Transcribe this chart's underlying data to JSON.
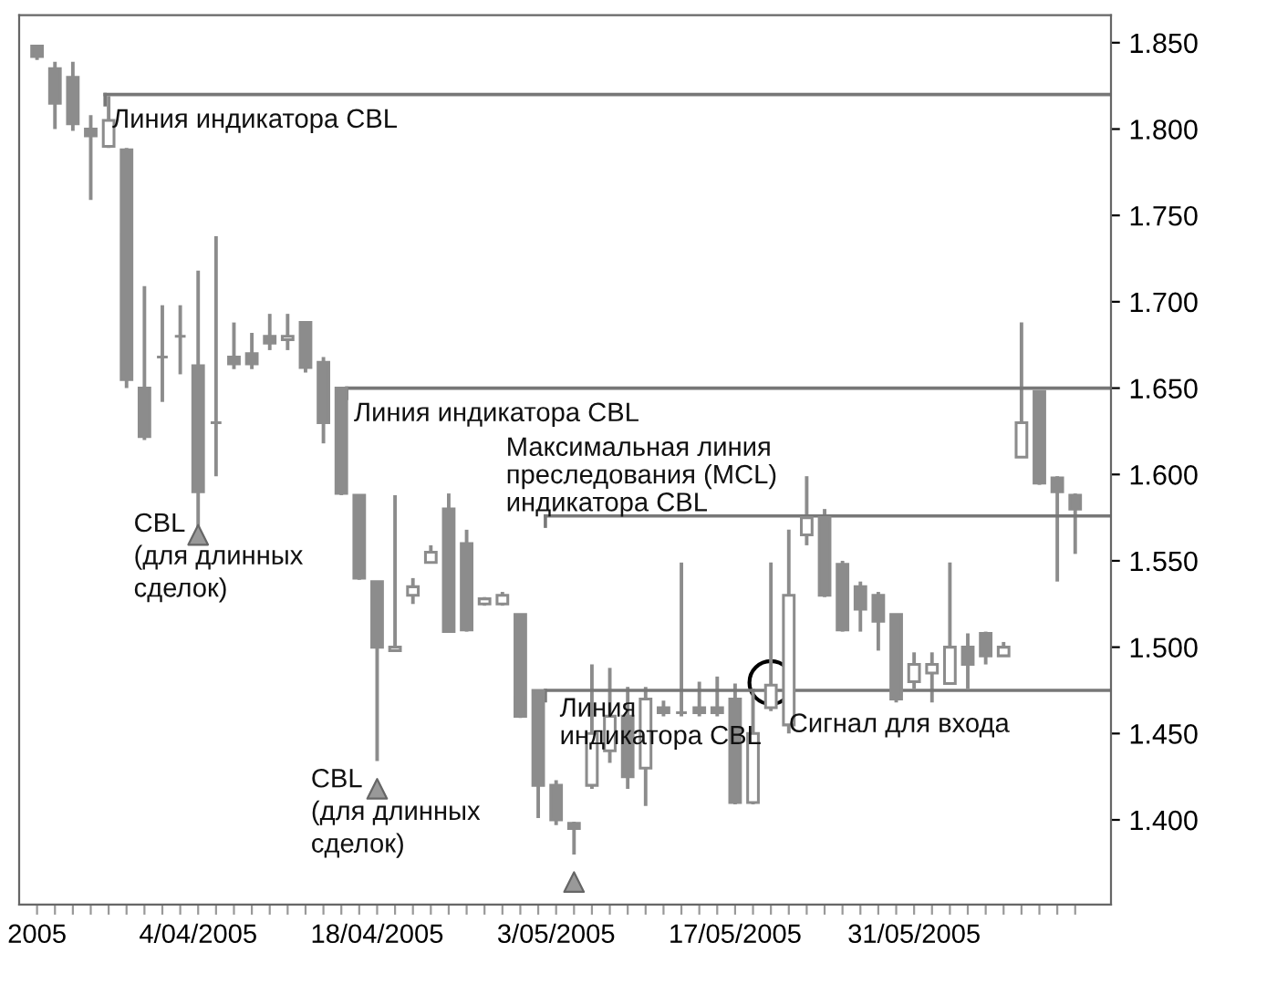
{
  "chart_data": {
    "type": "candlestick",
    "categories": [
      "2005",
      null,
      null,
      null,
      null,
      null,
      null,
      null,
      null,
      "4/04/2005",
      null,
      null,
      null,
      null,
      null,
      null,
      null,
      null,
      null,
      "18/04/2005",
      null,
      null,
      null,
      null,
      null,
      null,
      null,
      null,
      null,
      "3/05/2005",
      null,
      null,
      null,
      null,
      null,
      null,
      null,
      null,
      null,
      "17/05/2005",
      null,
      null,
      null,
      null,
      null,
      null,
      null,
      null,
      null,
      "31/05/2005",
      null,
      null,
      null,
      null,
      null,
      null,
      null,
      null,
      null
    ],
    "ohlc": [
      [
        1.848,
        1.848,
        1.84,
        1.842
      ],
      [
        1.835,
        1.839,
        1.8,
        1.815
      ],
      [
        1.83,
        1.839,
        1.799,
        1.803
      ],
      [
        1.8,
        1.808,
        1.759,
        1.796
      ],
      [
        1.79,
        1.819,
        1.789,
        1.805
      ],
      [
        1.788,
        1.789,
        1.65,
        1.655
      ],
      [
        1.65,
        1.709,
        1.62,
        1.622
      ],
      [
        1.668,
        1.698,
        1.642,
        1.668
      ],
      [
        1.68,
        1.698,
        1.658,
        1.68
      ],
      [
        1.663,
        1.718,
        1.566,
        1.59
      ],
      [
        1.63,
        1.738,
        1.599,
        1.63
      ],
      [
        1.668,
        1.688,
        1.661,
        1.664
      ],
      [
        1.67,
        1.682,
        1.661,
        1.664
      ],
      [
        1.68,
        1.693,
        1.672,
        1.676
      ],
      [
        1.678,
        1.693,
        1.672,
        1.68
      ],
      [
        1.688,
        1.688,
        1.659,
        1.662
      ],
      [
        1.665,
        1.668,
        1.618,
        1.63
      ],
      [
        1.65,
        1.65,
        1.588,
        1.589
      ],
      [
        1.588,
        1.588,
        1.539,
        1.54
      ],
      [
        1.538,
        1.538,
        1.434,
        1.5
      ],
      [
        1.498,
        1.588,
        1.498,
        1.5
      ],
      [
        1.53,
        1.54,
        1.525,
        1.535
      ],
      [
        1.549,
        1.559,
        1.549,
        1.555
      ],
      [
        1.58,
        1.589,
        1.509,
        1.509
      ],
      [
        1.56,
        1.568,
        1.509,
        1.51
      ],
      [
        1.525,
        1.529,
        1.524,
        1.528
      ],
      [
        1.525,
        1.532,
        1.524,
        1.53
      ],
      [
        1.519,
        1.519,
        1.459,
        1.46
      ],
      [
        1.475,
        1.475,
        1.401,
        1.42
      ],
      [
        1.42,
        1.423,
        1.397,
        1.4
      ],
      [
        1.398,
        1.399,
        1.38,
        1.395
      ],
      [
        1.42,
        1.49,
        1.418,
        1.45
      ],
      [
        1.44,
        1.488,
        1.433,
        1.46
      ],
      [
        1.46,
        1.477,
        1.418,
        1.425
      ],
      [
        1.43,
        1.477,
        1.408,
        1.47
      ],
      [
        1.465,
        1.469,
        1.46,
        1.462
      ],
      [
        1.462,
        1.549,
        1.46,
        1.462
      ],
      [
        1.465,
        1.48,
        1.46,
        1.462
      ],
      [
        1.465,
        1.483,
        1.46,
        1.462
      ],
      [
        1.47,
        1.479,
        1.409,
        1.41
      ],
      [
        1.41,
        1.476,
        1.409,
        1.45
      ],
      [
        1.465,
        1.549,
        1.463,
        1.478
      ],
      [
        1.455,
        1.568,
        1.45,
        1.53
      ],
      [
        1.565,
        1.599,
        1.559,
        1.575
      ],
      [
        1.575,
        1.58,
        1.529,
        1.53
      ],
      [
        1.548,
        1.55,
        1.509,
        1.51
      ],
      [
        1.535,
        1.538,
        1.509,
        1.522
      ],
      [
        1.53,
        1.532,
        1.498,
        1.515
      ],
      [
        1.519,
        1.519,
        1.468,
        1.47
      ],
      [
        1.48,
        1.497,
        1.476,
        1.49
      ],
      [
        1.485,
        1.497,
        1.468,
        1.49
      ],
      [
        1.479,
        1.549,
        1.479,
        1.5
      ],
      [
        1.5,
        1.508,
        1.476,
        1.49
      ],
      [
        1.508,
        1.509,
        1.49,
        1.495
      ],
      [
        1.495,
        1.503,
        1.495,
        1.5
      ],
      [
        1.61,
        1.688,
        1.61,
        1.63
      ],
      [
        1.648,
        1.648,
        1.594,
        1.595
      ],
      [
        1.598,
        1.599,
        1.538,
        1.59
      ],
      [
        1.588,
        1.589,
        1.554,
        1.58
      ]
    ],
    "color": "#8c8c8c",
    "series": [
      {
        "type": "scatter",
        "marker": "triangle",
        "color": "#999999",
        "values": [
          null,
          null,
          null,
          null,
          null,
          null,
          null,
          null,
          null,
          1.565,
          null,
          null,
          null,
          null,
          null,
          null,
          null,
          null,
          null,
          1.418,
          null,
          null,
          null,
          null,
          null,
          null,
          null,
          null,
          null,
          null,
          1.364,
          null,
          null,
          null,
          null,
          null,
          null,
          null,
          null,
          null,
          null,
          null,
          null,
          null,
          null,
          null,
          null,
          null,
          null,
          null,
          null,
          null,
          null,
          null,
          null,
          null,
          null,
          null,
          null
        ]
      }
    ],
    "ylim": [
      1.351,
      1.866
    ],
    "yticks": [
      {
        "value": 1.4,
        "label": "1.400"
      },
      {
        "value": 1.45,
        "label": "1.450"
      },
      {
        "value": 1.5,
        "label": "1.500"
      },
      {
        "value": 1.55,
        "label": "1.550"
      },
      {
        "value": 1.6,
        "label": "1.600"
      },
      {
        "value": 1.65,
        "label": "1.650"
      },
      {
        "value": 1.7,
        "label": "1.700"
      },
      {
        "value": 1.75,
        "label": "1.750"
      },
      {
        "value": 1.8,
        "label": "1.800"
      },
      {
        "value": 1.85,
        "label": "1.850"
      }
    ],
    "ref_lines": [
      {
        "axis": "y",
        "value": 1.82,
        "label": "Линия индикатора CBL",
        "color": "#777777"
      },
      {
        "axis": "y",
        "value": 1.65,
        "label": "Линия индикатора CBL",
        "color": "#777777"
      },
      {
        "axis": "y",
        "value": 1.576,
        "label": "Максимальная линия\nпреследования (MCL)\nиндикатора CBL",
        "color": "#777777"
      },
      {
        "axis": "y",
        "value": 1.475,
        "label": "Линия\nиндикатора CBL",
        "color": "#777777"
      }
    ],
    "annotations": [
      "CBL\n(для длинных\nсделок)",
      "CBL\n(для длинных\nсделок)",
      "Сигнал для входа"
    ],
    "grid": false
  }
}
